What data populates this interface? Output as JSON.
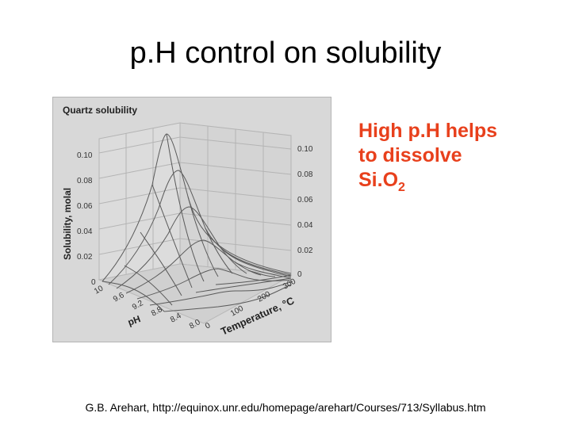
{
  "slide": {
    "title": "p.H control on solubility",
    "callout": {
      "line1": "High p.H helps",
      "line2": "to dissolve",
      "formula_main": "Si.O",
      "formula_sub": "2"
    },
    "citation": "G.B. Arehart, http://equinox.unr.edu/homepage/arehart/Courses/713/Syllabus.htm"
  },
  "figure": {
    "title": "Quartz solubility",
    "z_axis_label": "Solubility, molal",
    "z_ticks": [
      "0",
      "0.02",
      "0.04",
      "0.06",
      "0.08",
      "0.10"
    ],
    "ph_axis_label": "pH",
    "ph_ticks": [
      "10",
      "9.6",
      "9.2",
      "8.8",
      "8.4",
      "8.0"
    ],
    "temperature_axis_label": "Temperature, °C",
    "temperature_ticks": [
      "0",
      "100",
      "200",
      "300"
    ],
    "colors": {
      "background": "#d8d8d8",
      "grid": "#b0b0b0",
      "surface": "#5a5a5a"
    }
  }
}
